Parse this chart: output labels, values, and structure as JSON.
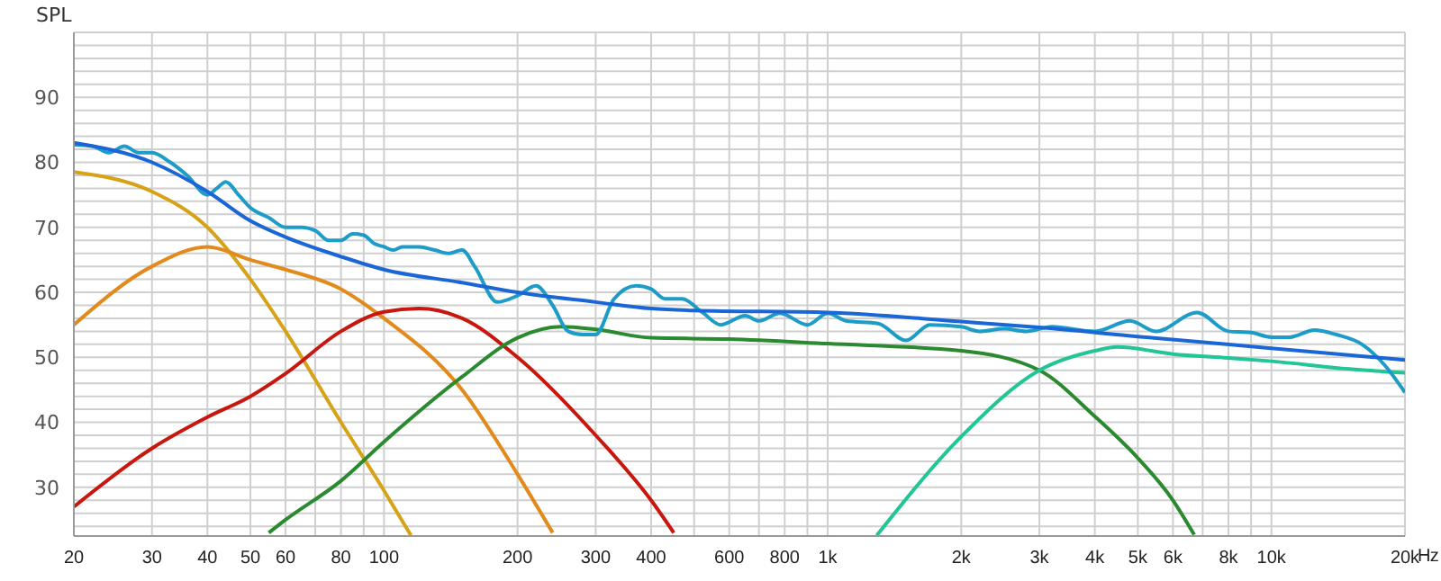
{
  "chart_data": {
    "type": "line",
    "ylabel": "SPL",
    "log": "x",
    "grid": true,
    "marker": "none",
    "line_style": "solid",
    "xlim": [
      20,
      20000
    ],
    "xticks": [
      20,
      30,
      40,
      50,
      60,
      {
        "value": 70,
        "label": null
      },
      80,
      {
        "value": 90,
        "label": null
      },
      100,
      200,
      300,
      400,
      {
        "value": 500,
        "label": null
      },
      600,
      {
        "value": 700,
        "label": null
      },
      800,
      {
        "value": 900,
        "label": null
      },
      {
        "value": 1000,
        "label": "1k"
      },
      {
        "value": 2000,
        "label": "2k"
      },
      {
        "value": 3000,
        "label": "3k"
      },
      {
        "value": 4000,
        "label": "4k"
      },
      {
        "value": 5000,
        "label": "5k"
      },
      {
        "value": 6000,
        "label": "6k"
      },
      {
        "value": 7000,
        "label": null
      },
      {
        "value": 8000,
        "label": "8k"
      },
      {
        "value": 9000,
        "label": null
      },
      {
        "value": 10000,
        "label": "10k"
      },
      {
        "value": 20000,
        "label": "20k"
      }
    ],
    "xlabel": "Hz",
    "ylim": [
      22.5,
      100
    ],
    "yticks": [
      {
        "value": 24,
        "label": null
      },
      {
        "value": 26,
        "label": null
      },
      {
        "value": 28,
        "label": null
      },
      30,
      {
        "value": 32,
        "label": null
      },
      {
        "value": 34,
        "label": null
      },
      {
        "value": 36,
        "label": null
      },
      {
        "value": 38,
        "label": null
      },
      40,
      {
        "value": 42,
        "label": null
      },
      {
        "value": 44,
        "label": null
      },
      {
        "value": 46,
        "label": null
      },
      {
        "value": 48,
        "label": null
      },
      50,
      {
        "value": 52,
        "label": null
      },
      {
        "value": 54,
        "label": null
      },
      {
        "value": 56,
        "label": null
      },
      {
        "value": 58,
        "label": null
      },
      60,
      {
        "value": 62,
        "label": null
      },
      {
        "value": 64,
        "label": null
      },
      {
        "value": 66,
        "label": null
      },
      {
        "value": 68,
        "label": null
      },
      70,
      {
        "value": 72,
        "label": null
      },
      {
        "value": 74,
        "label": null
      },
      {
        "value": 76,
        "label": null
      },
      {
        "value": 78,
        "label": null
      },
      80,
      {
        "value": 82,
        "label": null
      },
      {
        "value": 84,
        "label": null
      },
      {
        "value": 86,
        "label": null
      },
      {
        "value": 88,
        "label": null
      },
      90,
      {
        "value": 92,
        "label": null
      },
      {
        "value": 94,
        "label": null
      },
      {
        "value": 96,
        "label": null
      },
      {
        "value": 98,
        "label": null
      },
      {
        "value": 100,
        "label": null
      }
    ],
    "series": [
      {
        "color": "#d6a318",
        "x": [
          20,
          30,
          40,
          50,
          60,
          80,
          100,
          115
        ],
        "values": [
          78.5,
          75.5,
          70,
          62,
          54,
          40,
          29.5,
          22.6
        ]
      },
      {
        "color": "#e38a1c",
        "x": [
          20,
          30,
          40,
          50,
          60,
          80,
          100,
          150,
          200,
          240
        ],
        "values": [
          55,
          64,
          67,
          65,
          63.5,
          60.5,
          56,
          45,
          32,
          23
        ]
      },
      {
        "color": "#c8170f",
        "x": [
          20,
          30,
          40,
          50,
          60,
          80,
          100,
          120,
          150,
          200,
          300,
          400,
          450
        ],
        "values": [
          27,
          36,
          40.8,
          44,
          47.5,
          54,
          57,
          57.5,
          56,
          50,
          38,
          28,
          23
        ]
      },
      {
        "color": "#2b8a2f",
        "x": [
          55,
          60,
          80,
          100,
          150,
          200,
          250,
          300,
          400,
          600,
          1000,
          2000,
          3000,
          4000,
          5000,
          6000,
          6700
        ],
        "values": [
          23,
          25,
          31,
          37,
          47,
          53,
          54.7,
          54.3,
          53,
          52.8,
          52.1,
          51,
          48,
          40.9,
          34.5,
          28,
          22.7
        ]
      },
      {
        "color": "#22c596",
        "x": [
          1290,
          2000,
          3000,
          4000,
          4500,
          6000,
          8000,
          10000,
          15000,
          20000
        ],
        "values": [
          22.6,
          37.8,
          48,
          51,
          51.6,
          50.5,
          49.9,
          49.4,
          48.2,
          47.6
        ]
      },
      {
        "color": "#1e9cc8",
        "x": [
          20,
          22,
          24,
          26,
          28,
          30,
          33,
          36,
          40,
          42,
          44,
          47,
          50,
          55,
          60,
          65,
          70,
          75,
          80,
          85,
          90,
          95,
          100,
          105,
          110,
          120,
          130,
          140,
          150,
          160,
          180,
          200,
          220,
          240,
          260,
          280,
          300,
          330,
          370,
          400,
          430,
          470,
          520,
          574,
          652,
          700,
          780,
          900,
          1000,
          1100,
          1300,
          1500,
          1700,
          2000,
          2200,
          2500,
          2800,
          3200,
          4000,
          4800,
          5500,
          6800,
          8000,
          9000,
          10000,
          11000,
          12500,
          14000,
          16000,
          18000,
          20000
        ],
        "values": [
          82.7,
          82.5,
          81.5,
          82.5,
          81.5,
          81.5,
          80,
          78,
          75,
          76,
          77,
          75,
          73,
          71.5,
          70,
          70,
          69.5,
          68,
          68,
          69,
          68.8,
          67.5,
          67,
          66.5,
          67,
          67,
          66.5,
          66,
          66.5,
          64,
          58.5,
          59.5,
          61,
          58,
          54,
          53.5,
          53.5,
          59,
          61,
          60.5,
          59,
          59,
          57,
          55,
          56.4,
          55.6,
          56.8,
          55,
          56.8,
          55.6,
          55.2,
          52.6,
          55,
          54.7,
          54,
          54.4,
          54,
          54.7,
          54,
          55.6,
          54,
          56.9,
          54,
          53.8,
          53.1,
          53.1,
          54.2,
          53.5,
          52,
          48.8,
          44.6
        ]
      },
      {
        "color": "#1a66d6",
        "x": [
          20,
          30,
          40,
          50,
          60,
          80,
          100,
          150,
          200,
          300,
          400,
          500,
          1000,
          2000,
          3000,
          5000,
          10000,
          20000
        ],
        "values": [
          83,
          80,
          75.5,
          71,
          68.5,
          65.5,
          63.5,
          61.5,
          60,
          58.5,
          57.5,
          57.2,
          56.9,
          55.5,
          54.6,
          53.2,
          51.4,
          49.6
        ]
      }
    ]
  }
}
